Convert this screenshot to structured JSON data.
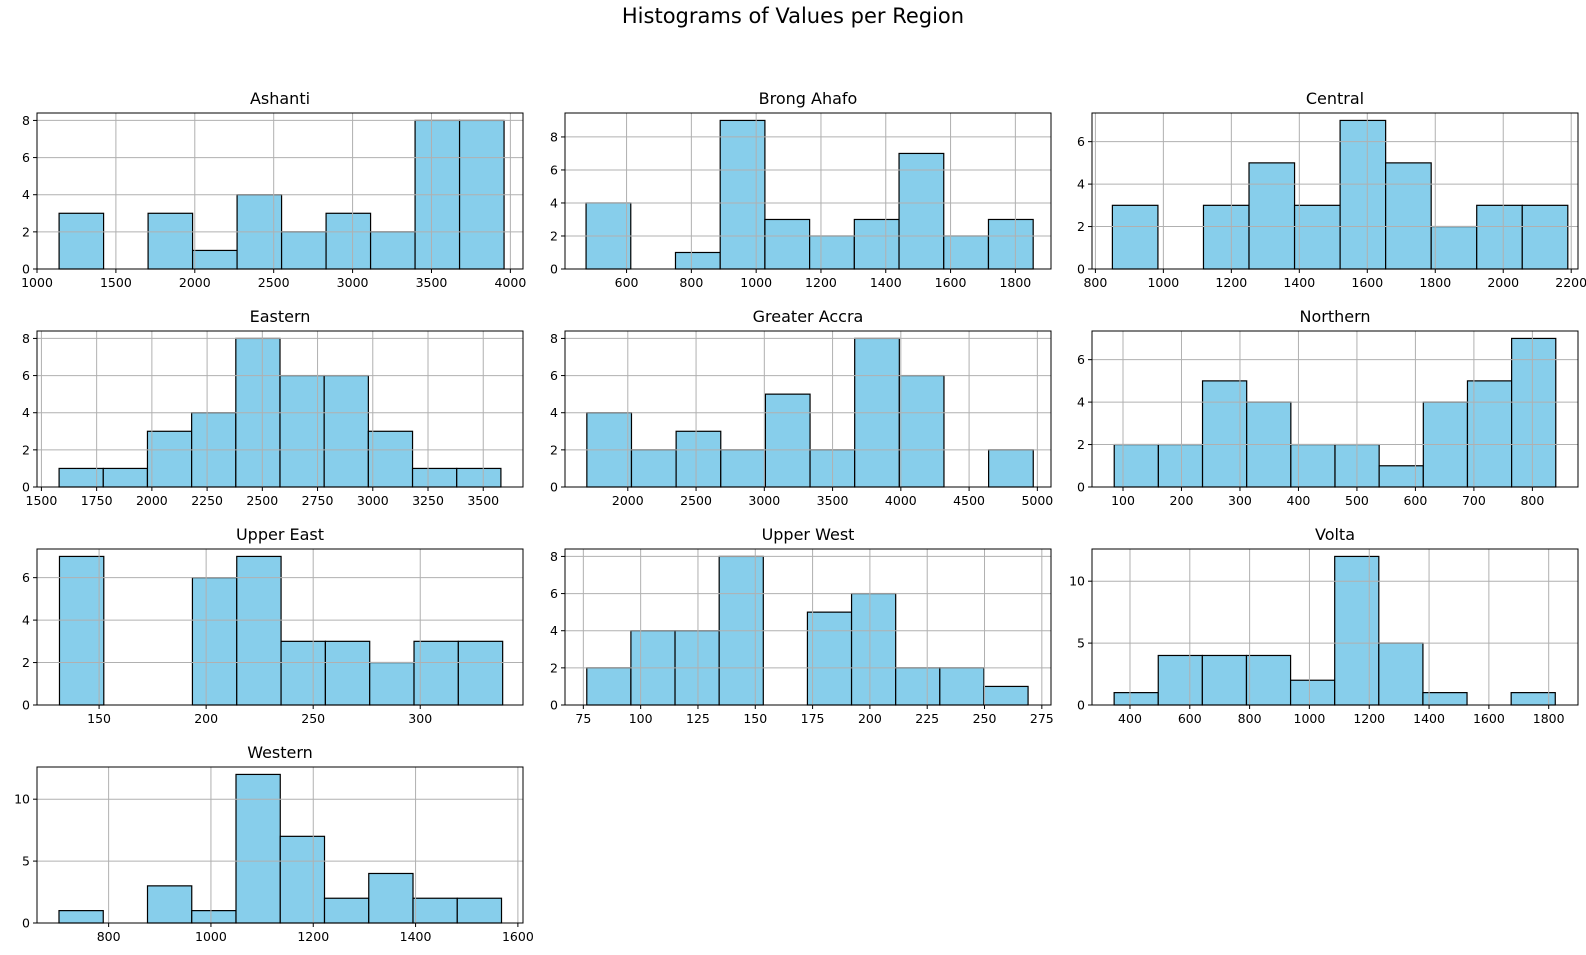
{
  "figure_title": "Histograms of Values per Region",
  "colors": {
    "bar_fill": "#87ceeb",
    "bar_edge": "#000000",
    "grid": "#b0b0b0"
  },
  "chart_data": [
    {
      "type": "bar",
      "title": "Ashanti",
      "xlim": [
        1000,
        4080
      ],
      "ylim": [
        0,
        8.4
      ],
      "xticks": [
        1000,
        1500,
        2000,
        2500,
        3000,
        3500,
        4000
      ],
      "yticks": [
        0,
        2,
        4,
        6,
        8
      ],
      "bin_edges": [
        1140,
        1422,
        1704,
        1986,
        2268,
        2550,
        2832,
        3114,
        3396,
        3678,
        3960
      ],
      "counts": [
        3,
        0,
        3,
        1,
        4,
        2,
        3,
        2,
        8,
        8
      ]
    },
    {
      "type": "bar",
      "title": "Brong Ahafo",
      "xlim": [
        410,
        1910
      ],
      "ylim": [
        0,
        9.45
      ],
      "xticks": [
        600,
        800,
        1000,
        1200,
        1400,
        1600,
        1800
      ],
      "yticks": [
        0,
        2,
        4,
        6,
        8
      ],
      "bin_edges": [
        475,
        613,
        751,
        889,
        1027,
        1165,
        1303,
        1441,
        1579,
        1717,
        1855
      ],
      "counts": [
        4,
        0,
        1,
        9,
        3,
        2,
        3,
        7,
        2,
        3
      ]
    },
    {
      "type": "bar",
      "title": "Central",
      "xlim": [
        790,
        2220
      ],
      "ylim": [
        0,
        7.35
      ],
      "xticks": [
        800,
        1000,
        1200,
        1400,
        1600,
        1800,
        2000,
        2200
      ],
      "yticks": [
        0,
        2,
        4,
        6
      ],
      "bin_edges": [
        850,
        984,
        1118,
        1252,
        1386,
        1520,
        1654,
        1788,
        1922,
        2056,
        2190
      ],
      "counts": [
        3,
        0,
        3,
        5,
        3,
        7,
        5,
        2,
        3,
        3
      ]
    },
    {
      "type": "bar",
      "title": "Eastern",
      "xlim": [
        1480,
        3680
      ],
      "ylim": [
        0,
        8.4
      ],
      "xticks": [
        1500,
        1750,
        2000,
        2250,
        2500,
        2750,
        3000,
        3250,
        3500
      ],
      "yticks": [
        0,
        2,
        4,
        6,
        8
      ],
      "bin_edges": [
        1580,
        1780,
        1980,
        2180,
        2380,
        2580,
        2780,
        2980,
        3180,
        3380,
        3580
      ],
      "counts": [
        1,
        1,
        3,
        4,
        8,
        6,
        6,
        3,
        1,
        1
      ]
    },
    {
      "type": "bar",
      "title": "Greater Accra",
      "xlim": [
        1540,
        5100
      ],
      "ylim": [
        0,
        8.4
      ],
      "xticks": [
        2000,
        2500,
        3000,
        3500,
        4000,
        4500,
        5000
      ],
      "yticks": [
        0,
        2,
        4,
        6,
        8
      ],
      "bin_edges": [
        1700,
        2027,
        2354,
        2681,
        3008,
        3335,
        3662,
        3989,
        4316,
        4643,
        4970
      ],
      "counts": [
        4,
        2,
        3,
        2,
        5,
        2,
        8,
        6,
        0,
        2
      ]
    },
    {
      "type": "bar",
      "title": "Northern",
      "xlim": [
        47,
        878
      ],
      "ylim": [
        0,
        7.35
      ],
      "xticks": [
        100,
        200,
        300,
        400,
        500,
        600,
        700,
        800
      ],
      "yticks": [
        0,
        2,
        4,
        6
      ],
      "bin_edges": [
        85,
        160.5,
        236,
        311.5,
        387,
        462.5,
        538,
        613.5,
        689,
        764.5,
        840
      ],
      "counts": [
        2,
        2,
        5,
        4,
        2,
        2,
        1,
        4,
        5,
        7
      ]
    },
    {
      "type": "bar",
      "title": "Upper East",
      "xlim": [
        121,
        348
      ],
      "ylim": [
        0,
        7.35
      ],
      "xticks": [
        150,
        200,
        250,
        300
      ],
      "yticks": [
        0,
        2,
        4,
        6
      ],
      "bin_edges": [
        131.5,
        152.2,
        172.9,
        193.6,
        214.3,
        235,
        255.7,
        276.4,
        297.1,
        317.8,
        338.5
      ],
      "counts": [
        7,
        0,
        0,
        6,
        7,
        3,
        3,
        2,
        3,
        3
      ]
    },
    {
      "type": "bar",
      "title": "Upper West",
      "xlim": [
        67,
        279
      ],
      "ylim": [
        0,
        8.4
      ],
      "xticks": [
        75,
        100,
        125,
        150,
        175,
        200,
        225,
        250,
        275
      ],
      "yticks": [
        0,
        2,
        4,
        6,
        8
      ],
      "bin_edges": [
        76.5,
        95.75,
        115,
        134.25,
        153.5,
        172.75,
        192,
        211.25,
        230.5,
        249.75,
        269
      ],
      "counts": [
        2,
        4,
        4,
        8,
        0,
        5,
        6,
        2,
        2,
        1
      ]
    },
    {
      "type": "bar",
      "title": "Volta",
      "xlim": [
        273,
        1898
      ],
      "ylim": [
        0,
        12.6
      ],
      "xticks": [
        400,
        600,
        800,
        1000,
        1200,
        1400,
        1600,
        1800
      ],
      "yticks": [
        0,
        5,
        10
      ],
      "bin_edges": [
        347,
        494.5,
        642,
        789.5,
        937,
        1084.5,
        1232,
        1379.5,
        1527,
        1674.5,
        1822
      ],
      "counts": [
        1,
        4,
        4,
        4,
        2,
        12,
        5,
        1,
        0,
        1
      ]
    },
    {
      "type": "bar",
      "title": "Western",
      "xlim": [
        660,
        1610
      ],
      "ylim": [
        0,
        12.6
      ],
      "xticks": [
        800,
        1000,
        1200,
        1400,
        1600
      ],
      "yticks": [
        0,
        5,
        10
      ],
      "bin_edges": [
        703,
        789.5,
        876,
        962.5,
        1049,
        1135.5,
        1222,
        1308.5,
        1395,
        1481.5,
        1568
      ],
      "counts": [
        1,
        0,
        3,
        1,
        12,
        7,
        2,
        4,
        2,
        2
      ]
    }
  ]
}
